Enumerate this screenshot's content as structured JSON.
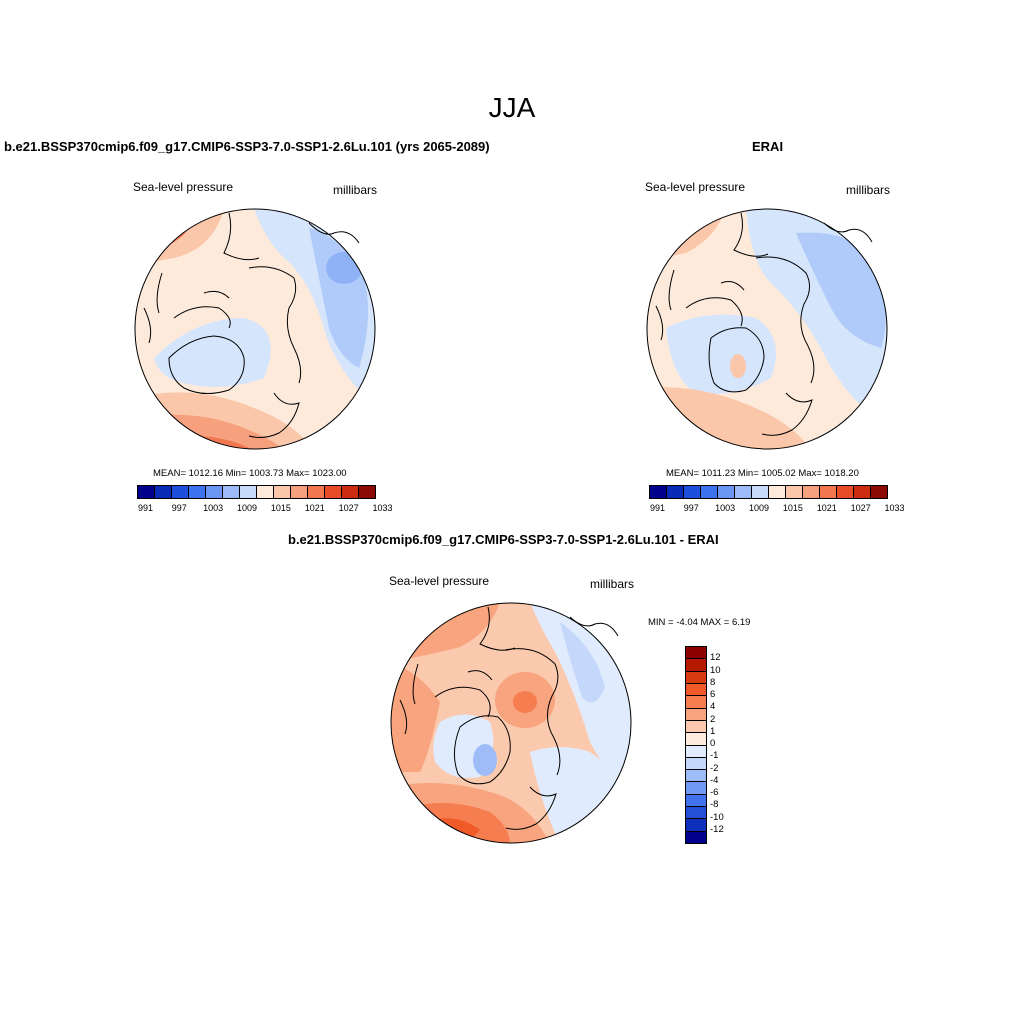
{
  "figure": {
    "title": "JJA"
  },
  "panels": {
    "model": {
      "title": "b.e21.BSSP370cmip6.f09_g17.CMIP6-SSP3-7.0-SSP1-2.6Lu.101 (yrs 2065-2089)",
      "left_label": "Sea-level pressure",
      "right_label": "millibars",
      "stats": "MEAN= 1012.16  Min= 1003.73  Max= 1023.00"
    },
    "obs": {
      "title": "ERAI",
      "left_label": "Sea-level pressure",
      "right_label": "millibars",
      "stats": "MEAN= 1011.23  Min= 1005.02  Max= 1018.20"
    },
    "diff": {
      "title": "b.e21.BSSP370cmip6.f09_g17.CMIP6-SSP3-7.0-SSP1-2.6Lu.101 - ERAI",
      "left_label": "Sea-level pressure",
      "right_label": "millibars",
      "minmax": "MIN =  -4.04 MAX =   6.19"
    }
  },
  "colorbars": {
    "abs": {
      "colors": [
        "#00008c",
        "#0a2bb5",
        "#1d4fdc",
        "#3d72ef",
        "#6b96f5",
        "#9cbbf8",
        "#c6dbfb",
        "#fdeadb",
        "#fbc7ab",
        "#f7a07d",
        "#f2764f",
        "#e84b28",
        "#cc2d10",
        "#8c0a06"
      ],
      "labels": [
        "991",
        "997",
        "1003",
        "1009",
        "1015",
        "1021",
        "1027",
        "1033"
      ]
    },
    "diff": {
      "colors": [
        "#8c0000",
        "#b51a00",
        "#d93a10",
        "#f05a28",
        "#f57d50",
        "#f8a47f",
        "#fbc9ad",
        "#fdebdd",
        "#e0ecfd",
        "#c3d8fb",
        "#9ebdf8",
        "#7099f3",
        "#4472ec",
        "#2450d9",
        "#0e2fbc",
        "#00008c"
      ],
      "labels": [
        "12",
        "10",
        "8",
        "6",
        "4",
        "2",
        "1",
        "0",
        "-1",
        "-2",
        "-4",
        "-6",
        "-8",
        "-10",
        "-12"
      ]
    }
  }
}
